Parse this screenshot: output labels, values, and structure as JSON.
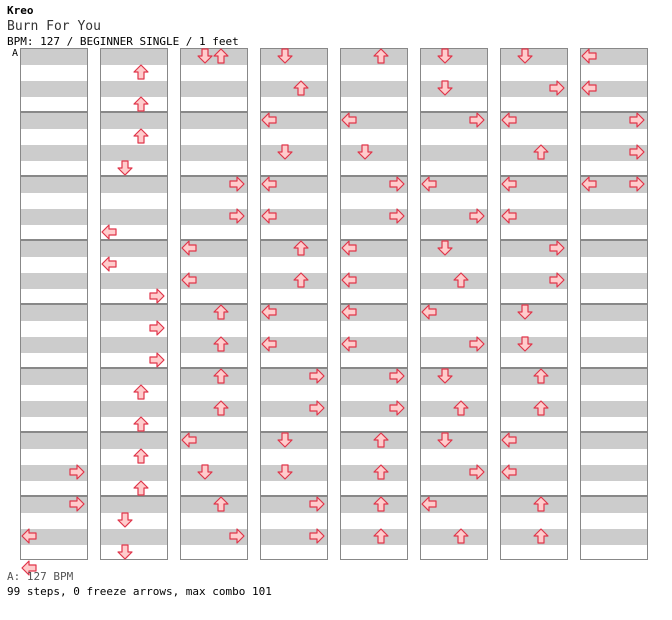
{
  "header": {
    "artist": "Kreo",
    "title": "Burn For You",
    "info": "BPM: 127 / BEGINNER SINGLE / 1 feet",
    "marker": "A"
  },
  "footer": {
    "bpm": "A: 127 BPM",
    "stats": "99 steps, 0 freeze arrows, max combo 101"
  },
  "colors": {
    "arrow_fill": "#ffcccc",
    "arrow_stroke": "#e0354a"
  },
  "chart": {
    "lane_order": [
      "left",
      "down",
      "up",
      "right"
    ],
    "columns": [
      {
        "steps": [
          {
            "beat": 13,
            "arrow": "right"
          },
          {
            "beat": 14,
            "arrow": "right"
          },
          {
            "beat": 15,
            "arrow": "left"
          },
          {
            "beat": 16,
            "arrow": "left"
          }
        ]
      },
      {
        "steps": [
          {
            "beat": 0.5,
            "arrow": "up"
          },
          {
            "beat": 1.5,
            "arrow": "up"
          },
          {
            "beat": 2.5,
            "arrow": "up"
          },
          {
            "beat": 3.5,
            "arrow": "down"
          },
          {
            "beat": 5.5,
            "arrow": "left"
          },
          {
            "beat": 6.5,
            "arrow": "left"
          },
          {
            "beat": 7.5,
            "arrow": "right"
          },
          {
            "beat": 8.5,
            "arrow": "right"
          },
          {
            "beat": 9.5,
            "arrow": "right"
          },
          {
            "beat": 10.5,
            "arrow": "up"
          },
          {
            "beat": 11.5,
            "arrow": "up"
          },
          {
            "beat": 12.5,
            "arrow": "up"
          },
          {
            "beat": 13.5,
            "arrow": "up"
          },
          {
            "beat": 14.5,
            "arrow": "down"
          },
          {
            "beat": 15.5,
            "arrow": "down"
          }
        ]
      },
      {
        "steps": [
          {
            "beat": 0,
            "arrow": "down"
          },
          {
            "beat": 0,
            "arrow": "up"
          },
          {
            "beat": 4,
            "arrow": "right"
          },
          {
            "beat": 5,
            "arrow": "right"
          },
          {
            "beat": 6,
            "arrow": "left"
          },
          {
            "beat": 7,
            "arrow": "left"
          },
          {
            "beat": 8,
            "arrow": "up"
          },
          {
            "beat": 9,
            "arrow": "up"
          },
          {
            "beat": 10,
            "arrow": "up"
          },
          {
            "beat": 11,
            "arrow": "up"
          },
          {
            "beat": 12,
            "arrow": "left"
          },
          {
            "beat": 13,
            "arrow": "down"
          },
          {
            "beat": 14,
            "arrow": "up"
          },
          {
            "beat": 15,
            "arrow": "right"
          }
        ]
      },
      {
        "steps": [
          {
            "beat": 0,
            "arrow": "down"
          },
          {
            "beat": 1,
            "arrow": "up"
          },
          {
            "beat": 2,
            "arrow": "left"
          },
          {
            "beat": 3,
            "arrow": "down"
          },
          {
            "beat": 4,
            "arrow": "left"
          },
          {
            "beat": 5,
            "arrow": "left"
          },
          {
            "beat": 6,
            "arrow": "up"
          },
          {
            "beat": 7,
            "arrow": "up"
          },
          {
            "beat": 8,
            "arrow": "left"
          },
          {
            "beat": 9,
            "arrow": "left"
          },
          {
            "beat": 10,
            "arrow": "right"
          },
          {
            "beat": 11,
            "arrow": "right"
          },
          {
            "beat": 12,
            "arrow": "down"
          },
          {
            "beat": 13,
            "arrow": "down"
          },
          {
            "beat": 14,
            "arrow": "right"
          },
          {
            "beat": 15,
            "arrow": "right"
          }
        ]
      },
      {
        "steps": [
          {
            "beat": 0,
            "arrow": "up"
          },
          {
            "beat": 2,
            "arrow": "left"
          },
          {
            "beat": 3,
            "arrow": "down"
          },
          {
            "beat": 4,
            "arrow": "right"
          },
          {
            "beat": 5,
            "arrow": "right"
          },
          {
            "beat": 6,
            "arrow": "left"
          },
          {
            "beat": 7,
            "arrow": "left"
          },
          {
            "beat": 8,
            "arrow": "left"
          },
          {
            "beat": 9,
            "arrow": "left"
          },
          {
            "beat": 10,
            "arrow": "right"
          },
          {
            "beat": 11,
            "arrow": "right"
          },
          {
            "beat": 12,
            "arrow": "up"
          },
          {
            "beat": 13,
            "arrow": "up"
          },
          {
            "beat": 14,
            "arrow": "up"
          },
          {
            "beat": 15,
            "arrow": "up"
          }
        ]
      },
      {
        "steps": [
          {
            "beat": 0,
            "arrow": "down"
          },
          {
            "beat": 1,
            "arrow": "down"
          },
          {
            "beat": 2,
            "arrow": "right"
          },
          {
            "beat": 4,
            "arrow": "left"
          },
          {
            "beat": 5,
            "arrow": "right"
          },
          {
            "beat": 6,
            "arrow": "down"
          },
          {
            "beat": 7,
            "arrow": "up"
          },
          {
            "beat": 8,
            "arrow": "left"
          },
          {
            "beat": 9,
            "arrow": "right"
          },
          {
            "beat": 10,
            "arrow": "down"
          },
          {
            "beat": 11,
            "arrow": "up"
          },
          {
            "beat": 12,
            "arrow": "down"
          },
          {
            "beat": 13,
            "arrow": "right"
          },
          {
            "beat": 14,
            "arrow": "left"
          },
          {
            "beat": 15,
            "arrow": "up"
          }
        ]
      },
      {
        "steps": [
          {
            "beat": 0,
            "arrow": "down"
          },
          {
            "beat": 1,
            "arrow": "right"
          },
          {
            "beat": 2,
            "arrow": "left"
          },
          {
            "beat": 3,
            "arrow": "up"
          },
          {
            "beat": 4,
            "arrow": "left"
          },
          {
            "beat": 5,
            "arrow": "left"
          },
          {
            "beat": 6,
            "arrow": "right"
          },
          {
            "beat": 7,
            "arrow": "right"
          },
          {
            "beat": 8,
            "arrow": "down"
          },
          {
            "beat": 9,
            "arrow": "down"
          },
          {
            "beat": 10,
            "arrow": "up"
          },
          {
            "beat": 11,
            "arrow": "up"
          },
          {
            "beat": 12,
            "arrow": "left"
          },
          {
            "beat": 13,
            "arrow": "left"
          },
          {
            "beat": 14,
            "arrow": "up"
          },
          {
            "beat": 15,
            "arrow": "up"
          }
        ]
      },
      {
        "steps": [
          {
            "beat": 0,
            "arrow": "left"
          },
          {
            "beat": 1,
            "arrow": "left"
          },
          {
            "beat": 2,
            "arrow": "right"
          },
          {
            "beat": 3,
            "arrow": "right"
          },
          {
            "beat": 4,
            "arrow": "left"
          },
          {
            "beat": 4,
            "arrow": "right"
          }
        ]
      }
    ]
  }
}
